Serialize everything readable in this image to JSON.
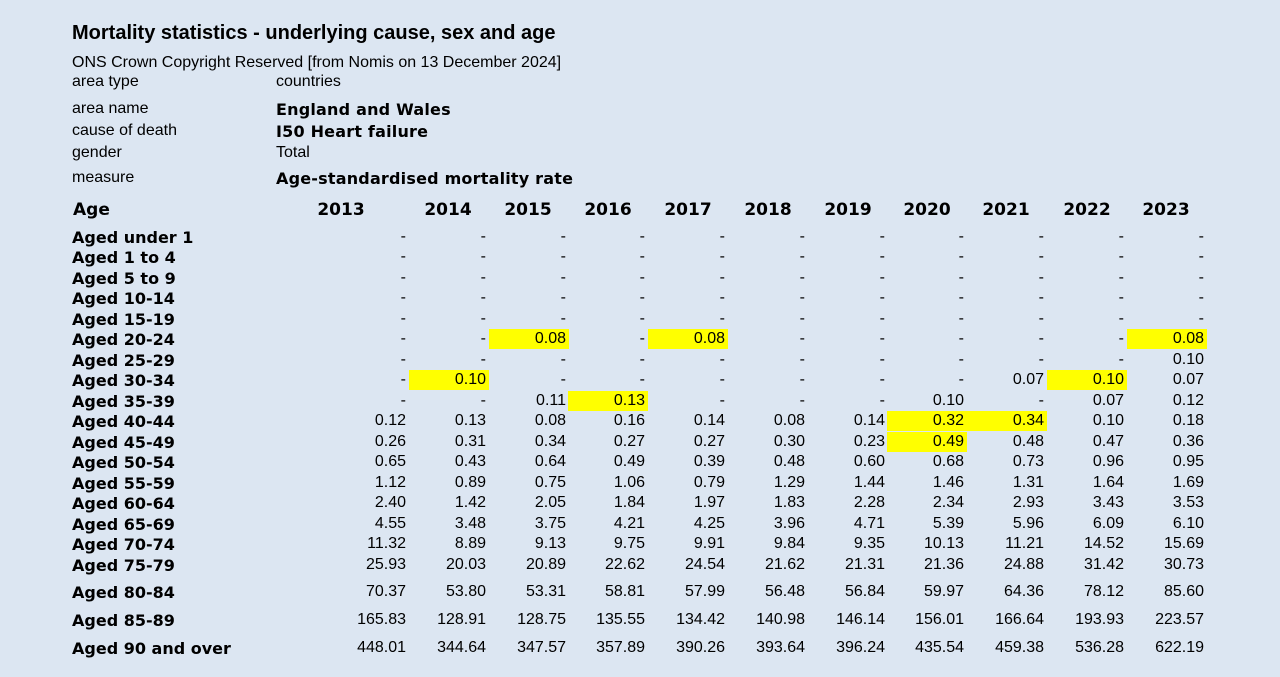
{
  "title": "Mortality statistics - underlying cause, sex and age",
  "source": "ONS Crown Copyright Reserved [from Nomis on 13 December 2024]",
  "meta": [
    {
      "label": "area type",
      "value": "countries",
      "bold": false
    },
    {
      "label": "area name",
      "value": "England and Wales",
      "bold": true
    },
    {
      "label": "cause of death",
      "value": "I50 Heart failure",
      "bold": true
    },
    {
      "label": "gender",
      "value": "Total",
      "bold": false
    },
    {
      "label": "measure",
      "value": "Age-standardised mortality rate",
      "bold": true
    }
  ],
  "table": {
    "age_header": "Age",
    "years": [
      "2013",
      "2014",
      "2015",
      "2016",
      "2017",
      "2018",
      "2019",
      "2020",
      "2021",
      "2022",
      "2023"
    ],
    "highlight_color": "#ffff00",
    "rows": [
      {
        "label": "Aged under 1",
        "values": [
          "-",
          "-",
          "-",
          "-",
          "-",
          "-",
          "-",
          "-",
          "-",
          "-",
          "-"
        ],
        "highlights": []
      },
      {
        "label": "Aged 1 to 4",
        "values": [
          "-",
          "-",
          "-",
          "-",
          "-",
          "-",
          "-",
          "-",
          "-",
          "-",
          "-"
        ],
        "highlights": []
      },
      {
        "label": "Aged 5 to 9",
        "values": [
          "-",
          "-",
          "-",
          "-",
          "-",
          "-",
          "-",
          "-",
          "-",
          "-",
          "-"
        ],
        "highlights": []
      },
      {
        "label": "Aged 10-14",
        "values": [
          "-",
          "-",
          "-",
          "-",
          "-",
          "-",
          "-",
          "-",
          "-",
          "-",
          "-"
        ],
        "highlights": []
      },
      {
        "label": "Aged 15-19",
        "values": [
          "-",
          "-",
          "-",
          "-",
          "-",
          "-",
          "-",
          "-",
          "-",
          "-",
          "-"
        ],
        "highlights": []
      },
      {
        "label": "Aged 20-24",
        "values": [
          "-",
          "-",
          "0.08",
          "-",
          "0.08",
          "-",
          "-",
          "-",
          "-",
          "-",
          "0.08"
        ],
        "highlights": [
          2,
          4,
          10
        ]
      },
      {
        "label": "Aged 25-29",
        "values": [
          "-",
          "-",
          "-",
          "-",
          "-",
          "-",
          "-",
          "-",
          "-",
          "-",
          "0.10"
        ],
        "highlights": []
      },
      {
        "label": "Aged 30-34",
        "values": [
          "-",
          "0.10",
          "-",
          "-",
          "-",
          "-",
          "-",
          "-",
          "0.07",
          "0.10",
          "0.07"
        ],
        "highlights": [
          1,
          9
        ]
      },
      {
        "label": "Aged 35-39",
        "values": [
          "-",
          "-",
          "0.11",
          "0.13",
          "-",
          "-",
          "-",
          "0.10",
          "-",
          "0.07",
          "0.12"
        ],
        "highlights": [
          3
        ]
      },
      {
        "label": "Aged 40-44",
        "values": [
          "0.12",
          "0.13",
          "0.08",
          "0.16",
          "0.14",
          "0.08",
          "0.14",
          "0.32",
          "0.34",
          "0.10",
          "0.18"
        ],
        "highlights": [
          7,
          8
        ]
      },
      {
        "label": "Aged 45-49",
        "values": [
          "0.26",
          "0.31",
          "0.34",
          "0.27",
          "0.27",
          "0.30",
          "0.23",
          "0.49",
          "0.48",
          "0.47",
          "0.36"
        ],
        "highlights": [
          7
        ]
      },
      {
        "label": "Aged 50-54",
        "values": [
          "0.65",
          "0.43",
          "0.64",
          "0.49",
          "0.39",
          "0.48",
          "0.60",
          "0.68",
          "0.73",
          "0.96",
          "0.95"
        ],
        "highlights": []
      },
      {
        "label": "Aged 55-59",
        "values": [
          "1.12",
          "0.89",
          "0.75",
          "1.06",
          "0.79",
          "1.29",
          "1.44",
          "1.46",
          "1.31",
          "1.64",
          "1.69"
        ],
        "highlights": []
      },
      {
        "label": "Aged 60-64",
        "values": [
          "2.40",
          "1.42",
          "2.05",
          "1.84",
          "1.97",
          "1.83",
          "2.28",
          "2.34",
          "2.93",
          "3.43",
          "3.53"
        ],
        "highlights": []
      },
      {
        "label": "Aged 65-69",
        "values": [
          "4.55",
          "3.48",
          "3.75",
          "4.21",
          "4.25",
          "3.96",
          "4.71",
          "5.39",
          "5.96",
          "6.09",
          "6.10"
        ],
        "highlights": []
      },
      {
        "label": "Aged 70-74",
        "values": [
          "11.32",
          "8.89",
          "9.13",
          "9.75",
          "9.91",
          "9.84",
          "9.35",
          "10.13",
          "11.21",
          "14.52",
          "15.69"
        ],
        "highlights": []
      },
      {
        "label": "Aged 75-79",
        "values": [
          "25.93",
          "20.03",
          "20.89",
          "22.62",
          "24.54",
          "21.62",
          "21.31",
          "21.36",
          "24.88",
          "31.42",
          "30.73"
        ],
        "highlights": []
      },
      {
        "label": "Aged 80-84",
        "values": [
          "70.37",
          "53.80",
          "53.31",
          "58.81",
          "57.99",
          "56.48",
          "56.84",
          "59.97",
          "64.36",
          "78.12",
          "85.60"
        ],
        "highlights": []
      },
      {
        "label": "Aged 85-89",
        "values": [
          "165.83",
          "128.91",
          "128.75",
          "135.55",
          "134.42",
          "140.98",
          "146.14",
          "156.01",
          "166.64",
          "193.93",
          "223.57"
        ],
        "highlights": []
      },
      {
        "label": "Aged 90 and over",
        "values": [
          "448.01",
          "344.64",
          "347.57",
          "357.89",
          "390.26",
          "393.64",
          "396.24",
          "435.54",
          "459.38",
          "536.28",
          "622.19"
        ],
        "highlights": []
      }
    ]
  }
}
